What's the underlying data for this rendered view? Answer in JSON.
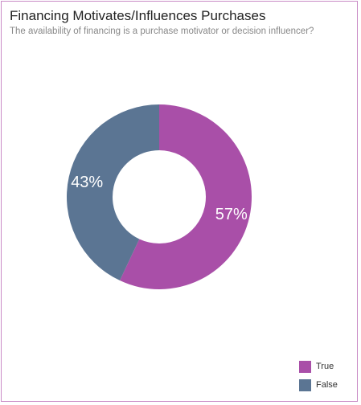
{
  "chart_data": {
    "type": "pie",
    "title": "Financing Motivates/Influences Purchases",
    "subtitle": "The availability of financing is a purchase motivator or decision influencer?",
    "slices": [
      {
        "label": "True",
        "value": 57,
        "display": "57%",
        "color": "#a94fa8"
      },
      {
        "label": "False",
        "value": 43,
        "display": "43%",
        "color": "#5b7593"
      }
    ],
    "legend_position": "bottom-right",
    "donut": true
  }
}
